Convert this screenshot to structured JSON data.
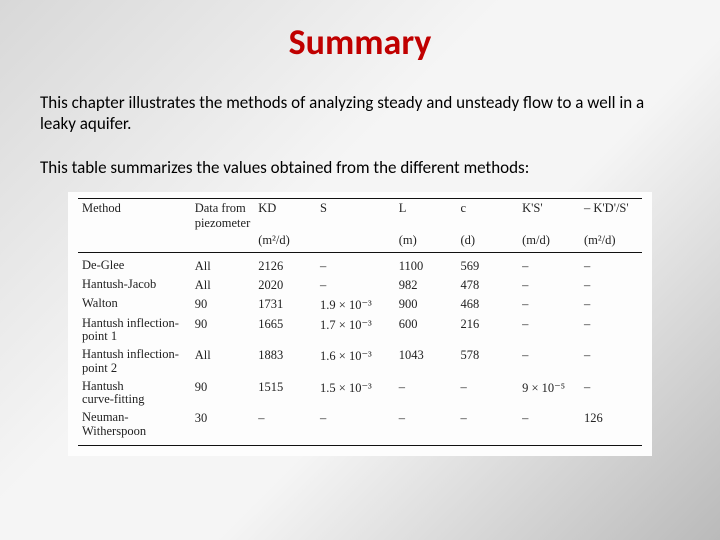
{
  "title": "Summary",
  "intro": "This chapter illustrates the methods of analyzing steady and unsteady flow to a well in a leaky aquifer.",
  "table_intro": "This table summarizes the values obtained from the different methods:",
  "table": {
    "type": "table",
    "background_color": "#fdfdfd",
    "font_family": "Times New Roman",
    "header_fontsize": 12.5,
    "cell_fontsize": 12.5,
    "rule_color": "#111111",
    "columns": [
      {
        "key": "method",
        "label": "Method",
        "sub": "",
        "unit": ""
      },
      {
        "key": "piezo",
        "label": "Data from",
        "sub": "piezometer",
        "unit": ""
      },
      {
        "key": "kd",
        "label": "KD",
        "sub": "",
        "unit": "(m²/d)"
      },
      {
        "key": "s",
        "label": "S",
        "sub": "",
        "unit": ""
      },
      {
        "key": "l",
        "label": "L",
        "sub": "",
        "unit": "(m)"
      },
      {
        "key": "c",
        "label": "c",
        "sub": "",
        "unit": "(d)"
      },
      {
        "key": "ks",
        "label": "K'S'",
        "sub": "",
        "unit": "(m/d)"
      },
      {
        "key": "kds",
        "label": "– K'D'/S'",
        "sub": "",
        "unit": "(m²/d)"
      }
    ],
    "rows": [
      {
        "method_lines": [
          "De-Glee"
        ],
        "piezo": "All",
        "kd": "2126",
        "s": "–",
        "l": "1100",
        "c": "569",
        "ks": "–",
        "kds": "–"
      },
      {
        "method_lines": [
          "Hantush-Jacob"
        ],
        "piezo": "All",
        "kd": "2020",
        "s": "–",
        "l": "982",
        "c": "478",
        "ks": "–",
        "kds": "–"
      },
      {
        "method_lines": [
          "Walton"
        ],
        "piezo": "90",
        "kd": "1731",
        "s": "1.9 × 10⁻³",
        "l": "900",
        "c": "468",
        "ks": "–",
        "kds": "–"
      },
      {
        "method_lines": [
          "Hantush inflection-",
          "point 1"
        ],
        "piezo": "90",
        "kd": "1665",
        "s": "1.7 × 10⁻³",
        "l": "600",
        "c": "216",
        "ks": "–",
        "kds": "–"
      },
      {
        "method_lines": [
          "Hantush inflection-",
          "point 2"
        ],
        "piezo": "All",
        "kd": "1883",
        "s": "1.6 × 10⁻³",
        "l": "1043",
        "c": "578",
        "ks": "–",
        "kds": "–"
      },
      {
        "method_lines": [
          "Hantush",
          "curve-fitting"
        ],
        "piezo": "90",
        "kd": "1515",
        "s": "1.5 × 10⁻³",
        "l": "–",
        "c": "–",
        "ks": "9 × 10⁻⁵",
        "kds": "–"
      },
      {
        "method_lines": [
          "Neuman-",
          "Witherspoon"
        ],
        "piezo": "30",
        "kd": "–",
        "s": "–",
        "l": "–",
        "c": "–",
        "ks": "–",
        "kds": "126"
      }
    ]
  },
  "colors": {
    "title": "#c00000",
    "text": "#000000",
    "slide_bg_stops": [
      "#d8d8d8",
      "#f5f5f5",
      "#f5f5f5",
      "#bababa"
    ]
  }
}
